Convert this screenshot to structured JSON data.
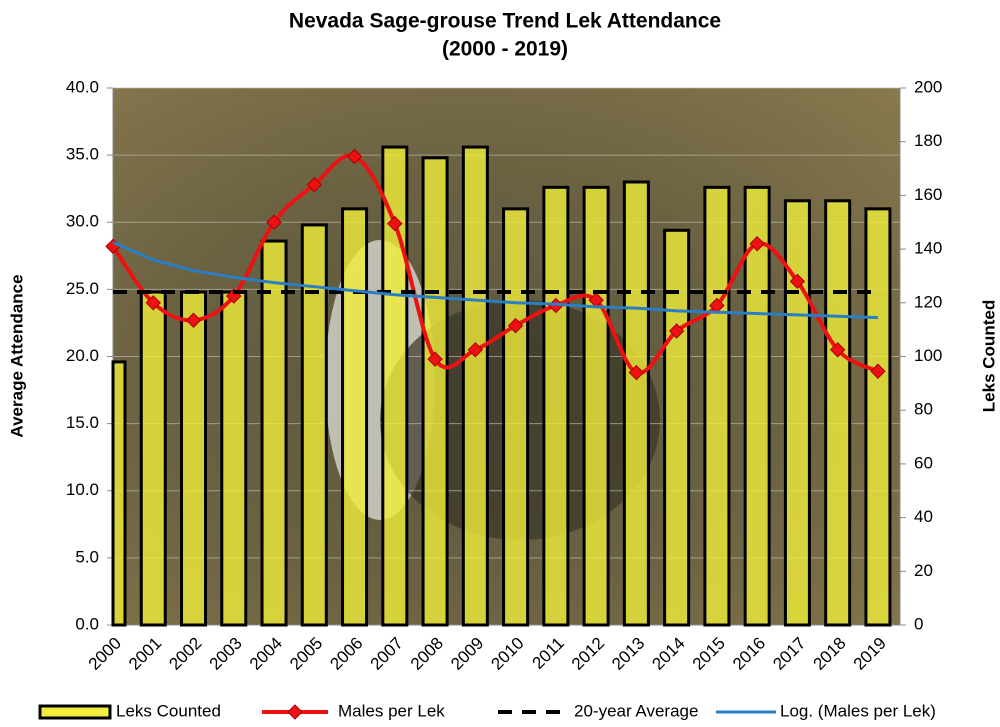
{
  "chart_data": {
    "type": "bar",
    "title": "Nevada Sage-grouse Trend Lek Attendance",
    "subtitle": "(2000 - 2019)",
    "ylabel": "Average Attendance",
    "y2label": "Leks Counted",
    "categories": [
      "2000",
      "2001",
      "2002",
      "2003",
      "2004",
      "2005",
      "2006",
      "2007",
      "2008",
      "2009",
      "2010",
      "2011",
      "2012",
      "2013",
      "2014",
      "2015",
      "2016",
      "2017",
      "2018",
      "2019"
    ],
    "series": [
      {
        "name": "Leks Counted",
        "type": "bar",
        "axis": "y2",
        "color": "#f0ee3a",
        "values": [
          98,
          124,
          124,
          124,
          143,
          149,
          155,
          178,
          174,
          178,
          155,
          163,
          163,
          165,
          147,
          163,
          163,
          158,
          158,
          155
        ]
      },
      {
        "name": "Males per Lek",
        "type": "line",
        "color": "#ee1111",
        "values": [
          28.2,
          24.0,
          22.7,
          24.5,
          30.0,
          32.8,
          34.9,
          29.9,
          19.8,
          20.5,
          22.3,
          23.8,
          24.2,
          18.8,
          21.9,
          23.8,
          28.4,
          25.6,
          20.5,
          18.9
        ]
      },
      {
        "name": "20-year Average",
        "type": "dashed",
        "color": "#000000",
        "values": [
          24.8,
          24.8,
          24.8,
          24.8,
          24.8,
          24.8,
          24.8,
          24.8,
          24.8,
          24.8,
          24.8,
          24.8,
          24.8,
          24.8,
          24.8,
          24.8,
          24.8,
          24.8,
          24.8,
          24.8
        ]
      },
      {
        "name": "Log. (Males per Lek)",
        "type": "trend",
        "color": "#2a7fc4",
        "values": [
          28.5,
          27.2,
          26.4,
          25.9,
          25.5,
          25.2,
          24.9,
          24.6,
          24.4,
          24.2,
          24.0,
          23.9,
          23.7,
          23.6,
          23.4,
          23.3,
          23.2,
          23.1,
          23.0,
          22.9
        ]
      }
    ],
    "ylim": [
      0,
      40
    ],
    "yticks": [
      {
        "value": 0,
        "label": "0.0"
      },
      {
        "value": 5,
        "label": "5.0"
      },
      {
        "value": 10,
        "label": "10.0"
      },
      {
        "value": 15,
        "label": "15.0"
      },
      {
        "value": 20,
        "label": "20.0"
      },
      {
        "value": 25,
        "label": "25.0"
      },
      {
        "value": 30,
        "label": "30.0"
      },
      {
        "value": 35,
        "label": "35.0"
      },
      {
        "value": 40,
        "label": "40.0"
      }
    ],
    "y2lim": [
      0,
      200
    ],
    "y2ticks": [
      0,
      20,
      40,
      60,
      80,
      100,
      120,
      140,
      160,
      180,
      200
    ],
    "grid": true,
    "legend": "bottom"
  }
}
